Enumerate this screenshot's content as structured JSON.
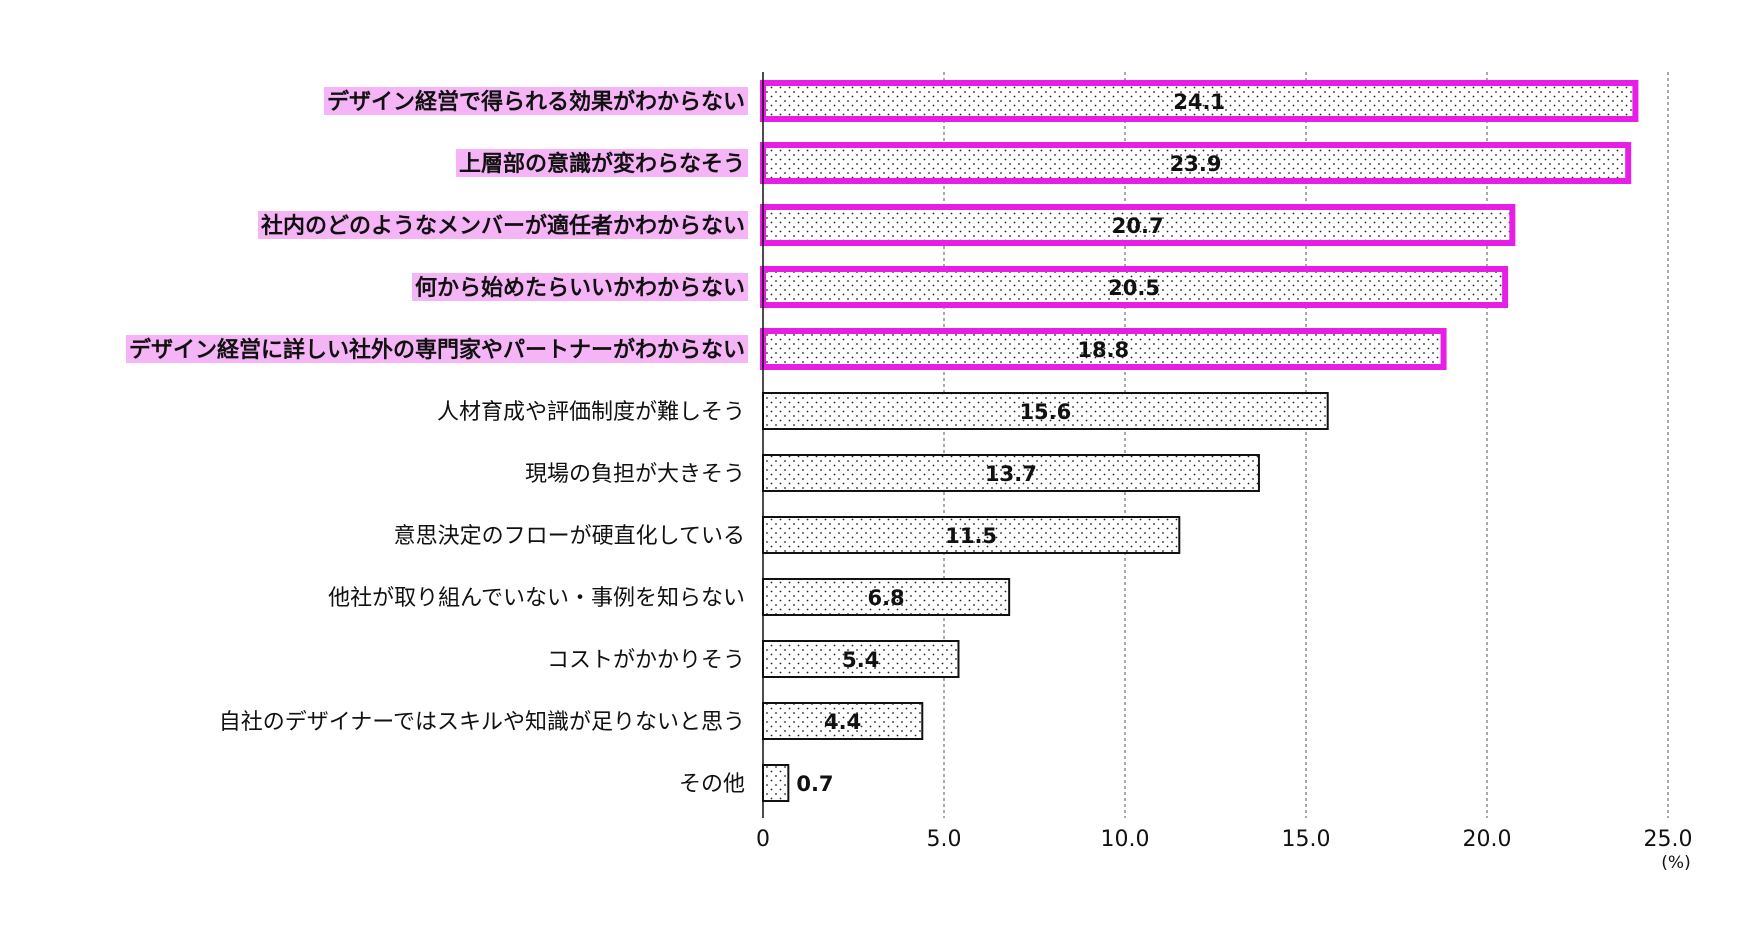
{
  "chart_data": {
    "type": "bar",
    "orientation": "horizontal",
    "categories": [
      "デザイン経営で得られる効果がわからない",
      "上層部の意識が変わらなそう",
      "社内のどのようなメンバーが適任者かわからない",
      "何から始めたらいいかわからない",
      "デザイン経営に詳しい社外の専門家やパートナーがわからない",
      "人材育成や評価制度が難しそう",
      "現場の負担が大きそう",
      "意思決定のフローが硬直化している",
      "他社が取り組んでいない・事例を知らない",
      "コストがかかりそう",
      "自社のデザイナーではスキルや知識が足りないと思う",
      "その他"
    ],
    "values": [
      24.1,
      23.9,
      20.7,
      20.5,
      18.8,
      15.6,
      13.7,
      11.5,
      6.8,
      5.4,
      4.4,
      0.7
    ],
    "value_labels": [
      "24.1",
      "23.9",
      "20.7",
      "20.5",
      "18.8",
      "15.6",
      "13.7",
      "11.5",
      "6.8",
      "5.4",
      "4.4",
      "0.7"
    ],
    "highlighted_indices": [
      0,
      1,
      2,
      3,
      4
    ],
    "xlim": [
      0,
      25
    ],
    "x_ticks": [
      0,
      5,
      10,
      15,
      20,
      25
    ],
    "x_tick_labels": [
      "0",
      "5.0",
      "10.0",
      "15.0",
      "20.0",
      "25.0"
    ],
    "unit_label": "(%)",
    "grid": "vertical dashed",
    "title": "",
    "xlabel": "",
    "ylabel": ""
  },
  "colors": {
    "highlight": "#e61ee6",
    "label_highlight_bg": "#f5b4f5",
    "bar_fill": "#ffffff",
    "bar_stroke": "#111111",
    "dot_pattern": "#222222",
    "grid": "#555555"
  }
}
